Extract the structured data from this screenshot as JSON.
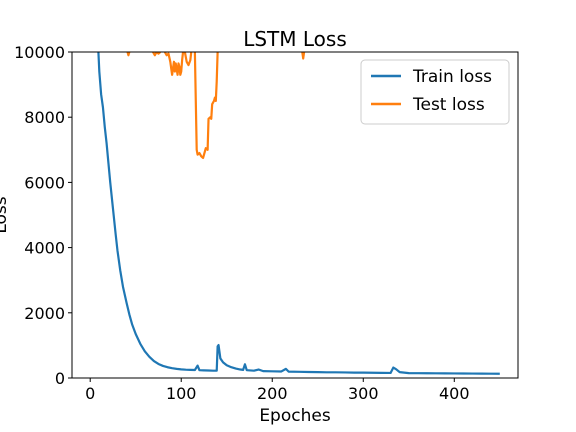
{
  "chart_data": {
    "type": "line",
    "title": "LSTM Loss",
    "xlabel": "Epoches",
    "ylabel": "Loss",
    "xlim": [
      -20,
      470
    ],
    "ylim": [
      0,
      10000
    ],
    "xticks": [
      0,
      100,
      200,
      300,
      400
    ],
    "xtick_labels": [
      "0",
      "100",
      "200",
      "300",
      "400"
    ],
    "yticks": [
      0,
      2000,
      4000,
      6000,
      8000,
      10000
    ],
    "ytick_labels": [
      "0",
      "2000",
      "4000",
      "6000",
      "8000",
      "10000"
    ],
    "grid": false,
    "legend_position": "top-right",
    "series": [
      {
        "name": "Train loss",
        "color": "#1f77b4",
        "points": [
          [
            9,
            10000
          ],
          [
            10,
            9400
          ],
          [
            12,
            8700
          ],
          [
            14,
            8300
          ],
          [
            16,
            7700
          ],
          [
            18,
            7200
          ],
          [
            20,
            6600
          ],
          [
            22,
            6000
          ],
          [
            25,
            5200
          ],
          [
            28,
            4400
          ],
          [
            30,
            3900
          ],
          [
            33,
            3300
          ],
          [
            36,
            2800
          ],
          [
            40,
            2300
          ],
          [
            43,
            1950
          ],
          [
            46,
            1650
          ],
          [
            50,
            1350
          ],
          [
            55,
            1050
          ],
          [
            60,
            820
          ],
          [
            65,
            650
          ],
          [
            70,
            520
          ],
          [
            75,
            430
          ],
          [
            80,
            370
          ],
          [
            85,
            330
          ],
          [
            90,
            300
          ],
          [
            95,
            280
          ],
          [
            100,
            265
          ],
          [
            105,
            255
          ],
          [
            110,
            250
          ],
          [
            115,
            245
          ],
          [
            118,
            380
          ],
          [
            120,
            240
          ],
          [
            125,
            235
          ],
          [
            130,
            230
          ],
          [
            135,
            225
          ],
          [
            139,
            225
          ],
          [
            140,
            970
          ],
          [
            141,
            1010
          ],
          [
            143,
            600
          ],
          [
            146,
            480
          ],
          [
            150,
            390
          ],
          [
            155,
            330
          ],
          [
            160,
            290
          ],
          [
            165,
            260
          ],
          [
            168,
            250
          ],
          [
            170,
            420
          ],
          [
            172,
            240
          ],
          [
            180,
            225
          ],
          [
            185,
            260
          ],
          [
            190,
            210
          ],
          [
            200,
            205
          ],
          [
            210,
            200
          ],
          [
            215,
            280
          ],
          [
            218,
            195
          ],
          [
            230,
            190
          ],
          [
            240,
            185
          ],
          [
            250,
            180
          ],
          [
            260,
            175
          ],
          [
            270,
            175
          ],
          [
            280,
            170
          ],
          [
            290,
            165
          ],
          [
            300,
            165
          ],
          [
            310,
            160
          ],
          [
            320,
            158
          ],
          [
            330,
            155
          ],
          [
            333,
            320
          ],
          [
            336,
            270
          ],
          [
            340,
            180
          ],
          [
            350,
            150
          ],
          [
            360,
            148
          ],
          [
            370,
            146
          ],
          [
            380,
            144
          ],
          [
            390,
            142
          ],
          [
            400,
            140
          ],
          [
            410,
            138
          ],
          [
            420,
            136
          ],
          [
            430,
            134
          ],
          [
            440,
            132
          ],
          [
            450,
            130
          ]
        ]
      },
      {
        "name": "Test loss",
        "color": "#ff7f0e",
        "segments": [
          [
            [
              41,
              10000
            ],
            [
              42,
              9900
            ],
            [
              43,
              10000
            ]
          ],
          [
            [
              69,
              10000
            ],
            [
              71,
              9900
            ],
            [
              73,
              10000
            ],
            [
              75,
              9950
            ],
            [
              77,
              10000
            ]
          ],
          [
            [
              82,
              10000
            ],
            [
              84,
              9900
            ],
            [
              86,
              9950
            ],
            [
              88,
              9700
            ],
            [
              89,
              9500
            ],
            [
              90,
              9300
            ],
            [
              91,
              9500
            ],
            [
              92,
              9700
            ],
            [
              93,
              9400
            ],
            [
              94,
              9650
            ],
            [
              96,
              9300
            ],
            [
              97,
              9650
            ],
            [
              98,
              9550
            ],
            [
              99,
              9300
            ],
            [
              100,
              9400
            ],
            [
              101,
              9750
            ],
            [
              102,
              10000
            ]
          ],
          [
            [
              104,
              10000
            ],
            [
              106,
              9700
            ],
            [
              108,
              9600
            ],
            [
              110,
              9750
            ],
            [
              111,
              10000
            ]
          ],
          [
            [
              115,
              10000
            ],
            [
              116,
              8500
            ],
            [
              117,
              7000
            ],
            [
              118,
              6850
            ],
            [
              120,
              6900
            ],
            [
              122,
              6800
            ],
            [
              124,
              6750
            ],
            [
              126,
              6950
            ],
            [
              127,
              7050
            ],
            [
              129,
              7000
            ],
            [
              130,
              7950
            ],
            [
              132,
              8000
            ],
            [
              133,
              7950
            ],
            [
              134,
              8400
            ],
            [
              136,
              8500
            ],
            [
              137,
              8600
            ],
            [
              138,
              8500
            ],
            [
              139,
              9100
            ],
            [
              140,
              10000
            ]
          ],
          [
            [
              233,
              10000
            ],
            [
              234,
              9800
            ],
            [
              235,
              10000
            ]
          ]
        ]
      }
    ]
  }
}
